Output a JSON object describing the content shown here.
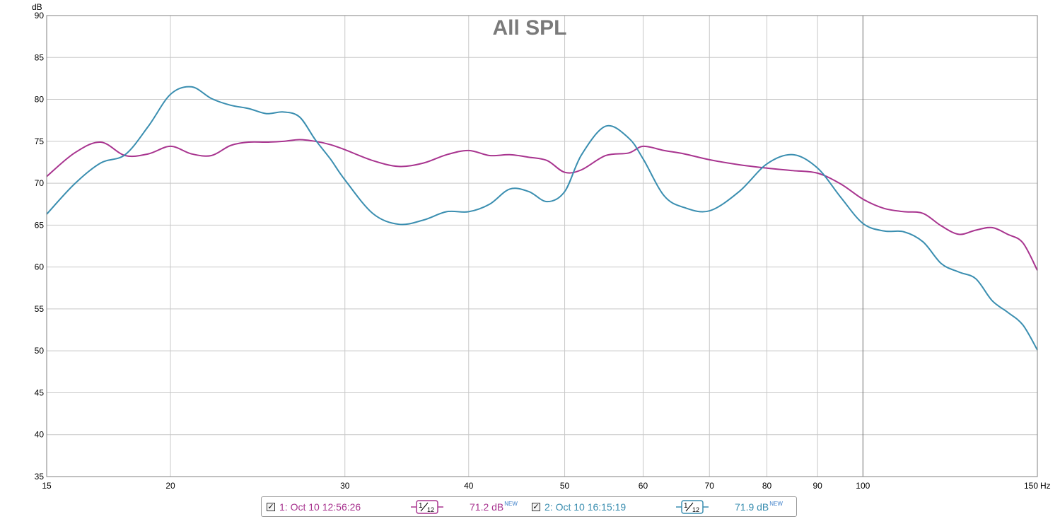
{
  "chart_data": {
    "type": "line",
    "title": "All SPL",
    "ylabel": "dB",
    "xunit": "Hz",
    "xscale": "log",
    "xlim": [
      15,
      150
    ],
    "ylim": [
      35,
      90
    ],
    "grid": true,
    "xticks": [
      15,
      20,
      30,
      40,
      50,
      60,
      70,
      80,
      90,
      100,
      150
    ],
    "xtick_labels": [
      "15",
      "20",
      "30",
      "40",
      "50",
      "60",
      "70",
      "80",
      "90",
      "100",
      "150"
    ],
    "yticks": [
      35,
      40,
      45,
      50,
      55,
      60,
      65,
      70,
      75,
      80,
      85,
      90
    ],
    "ytick_labels": [
      "35",
      "40",
      "45",
      "50",
      "55",
      "60",
      "65",
      "70",
      "75",
      "80",
      "85",
      "90"
    ],
    "series": [
      {
        "name": "1: Oct 10 12:56:26",
        "color": "#a8348f",
        "x": [
          15,
          16,
          17,
          18,
          19,
          20,
          21,
          22,
          23,
          24,
          25,
          26,
          27,
          28,
          29,
          30,
          32,
          34,
          36,
          38,
          40,
          42,
          44,
          46,
          48,
          50,
          52,
          55,
          58,
          60,
          63,
          66,
          70,
          75,
          80,
          85,
          90,
          95,
          100,
          105,
          110,
          115,
          120,
          125,
          130,
          135,
          140,
          145,
          150
        ],
        "values": [
          70.8,
          73.6,
          74.9,
          73.3,
          73.5,
          74.4,
          73.5,
          73.3,
          74.5,
          74.9,
          74.9,
          75.0,
          75.2,
          75.0,
          74.6,
          74.0,
          72.7,
          72.0,
          72.4,
          73.4,
          73.9,
          73.3,
          73.4,
          73.1,
          72.7,
          71.3,
          71.6,
          73.3,
          73.6,
          74.4,
          73.9,
          73.5,
          72.8,
          72.2,
          71.8,
          71.5,
          71.2,
          69.9,
          68.1,
          67.0,
          66.6,
          66.4,
          64.9,
          63.9,
          64.4,
          64.7,
          63.9,
          62.9,
          59.6
        ]
      },
      {
        "name": "2: Oct 10 16:15:19",
        "color": "#3a8eb0",
        "x": [
          15,
          16,
          17,
          18,
          19,
          20,
          21,
          22,
          23,
          24,
          25,
          26,
          27,
          28,
          29,
          30,
          32,
          34,
          36,
          38,
          40,
          42,
          44,
          46,
          48,
          50,
          52,
          55,
          58,
          60,
          63,
          66,
          70,
          75,
          80,
          85,
          90,
          95,
          100,
          105,
          110,
          115,
          120,
          125,
          130,
          135,
          140,
          145,
          150
        ],
        "values": [
          66.3,
          69.9,
          72.4,
          73.4,
          76.8,
          80.6,
          81.5,
          80.1,
          79.3,
          78.9,
          78.3,
          78.5,
          77.9,
          75.2,
          72.9,
          70.4,
          66.4,
          65.1,
          65.6,
          66.6,
          66.6,
          67.5,
          69.3,
          69.0,
          67.8,
          69.0,
          73.4,
          76.8,
          75.4,
          72.9,
          68.5,
          67.1,
          66.7,
          69.0,
          72.3,
          73.4,
          71.8,
          68.3,
          65.2,
          64.3,
          64.2,
          63.0,
          60.4,
          59.4,
          58.6,
          56.0,
          54.6,
          53.1,
          50.1
        ]
      }
    ]
  },
  "legend": {
    "items": [
      {
        "label": "1: Oct 10 12:56:26",
        "check": "✓",
        "smoothing_top": "1",
        "smoothing_bottom": "12",
        "spl": "71.2 dB",
        "badge": "NEW",
        "color": "#a8348f"
      },
      {
        "label": "2: Oct 10 16:15:19",
        "check": "✓",
        "smoothing_top": "1",
        "smoothing_bottom": "12",
        "spl": "71.9 dB",
        "badge": "NEW",
        "color": "#3a8eb0"
      }
    ]
  }
}
